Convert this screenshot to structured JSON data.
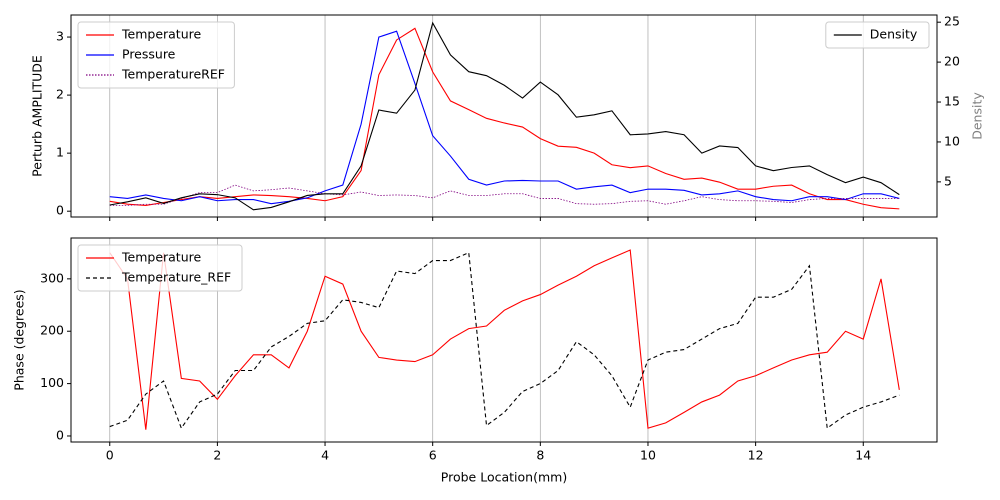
{
  "chart_data": [
    {
      "type": "line",
      "ylabel": "Perturb AMPLITUDE",
      "y2label": "Density",
      "y2label_color": "#808080",
      "x": [
        0,
        0.33,
        0.67,
        1,
        1.33,
        1.67,
        2,
        2.33,
        2.67,
        3,
        3.33,
        3.67,
        4,
        4.33,
        4.67,
        5,
        5.33,
        5.67,
        6,
        6.33,
        6.67,
        7,
        7.33,
        7.67,
        8,
        8.33,
        8.67,
        9,
        9.33,
        9.67,
        10,
        10.33,
        10.67,
        11,
        11.33,
        11.67,
        12,
        12.33,
        12.67,
        13,
        13.33,
        13.67,
        14,
        14.33,
        14.67
      ],
      "series": [
        {
          "name": "Temperature",
          "color": "#ff0000",
          "dash": "solid",
          "values": [
            0.17,
            0.12,
            0.1,
            0.15,
            0.2,
            0.25,
            0.22,
            0.25,
            0.28,
            0.27,
            0.25,
            0.22,
            0.18,
            0.25,
            0.7,
            2.35,
            2.95,
            3.15,
            2.4,
            1.9,
            1.75,
            1.6,
            1.52,
            1.45,
            1.25,
            1.12,
            1.1,
            1.0,
            0.8,
            0.75,
            0.78,
            0.65,
            0.55,
            0.57,
            0.5,
            0.38,
            0.38,
            0.43,
            0.45,
            0.3,
            0.2,
            0.2,
            0.12,
            0.06,
            0.04
          ]
        },
        {
          "name": "Pressure",
          "color": "#0000ff",
          "dash": "solid",
          "values": [
            0.25,
            0.22,
            0.28,
            0.22,
            0.18,
            0.25,
            0.18,
            0.2,
            0.2,
            0.13,
            0.17,
            0.23,
            0.35,
            0.45,
            1.5,
            3.0,
            3.1,
            2.2,
            1.3,
            0.95,
            0.55,
            0.45,
            0.52,
            0.53,
            0.52,
            0.52,
            0.38,
            0.42,
            0.45,
            0.32,
            0.38,
            0.38,
            0.36,
            0.28,
            0.3,
            0.35,
            0.25,
            0.2,
            0.18,
            0.25,
            0.25,
            0.2,
            0.3,
            0.3,
            0.22
          ]
        },
        {
          "name": "TemperatureREF",
          "color": "#800080",
          "dash": "dotted",
          "values": [
            0.1,
            0.1,
            0.12,
            0.12,
            0.22,
            0.32,
            0.32,
            0.45,
            0.35,
            0.37,
            0.4,
            0.35,
            0.3,
            0.28,
            0.33,
            0.27,
            0.28,
            0.27,
            0.23,
            0.35,
            0.27,
            0.27,
            0.3,
            0.3,
            0.22,
            0.22,
            0.13,
            0.12,
            0.13,
            0.17,
            0.18,
            0.12,
            0.18,
            0.25,
            0.2,
            0.18,
            0.18,
            0.17,
            0.15,
            0.2,
            0.22,
            0.22,
            0.22,
            0.22,
            0.22
          ]
        },
        {
          "name": "Density",
          "color": "#000000",
          "dash": "solid",
          "axis": "y2",
          "values": [
            2.1,
            2.5,
            3.0,
            2.3,
            3.0,
            3.5,
            3.4,
            3.0,
            1.5,
            1.8,
            2.5,
            3.3,
            3.5,
            3.5,
            7,
            14,
            13.6,
            16.5,
            24.9,
            20.9,
            18.8,
            18.3,
            17.1,
            15.5,
            17.5,
            15.9,
            13.1,
            13.4,
            13.9,
            10.9,
            11,
            11.3,
            10.9,
            8.6,
            9.5,
            9.3,
            7,
            6.4,
            6.8,
            7,
            5.9,
            4.9,
            5.6,
            4.9,
            3.4
          ]
        }
      ],
      "xlim": [
        -0.72,
        15.37
      ],
      "xticks": [
        0,
        2,
        4,
        6,
        8,
        10,
        12,
        14
      ],
      "xticklabels": false,
      "ylim": [
        -0.1,
        3.38
      ],
      "yticks": [
        0,
        1,
        2,
        3
      ],
      "y2lim": [
        0.6,
        25.9
      ],
      "y2ticks": [
        5,
        10,
        15,
        20,
        25
      ],
      "grid": "x",
      "legend": "upper left",
      "y2legend": "upper right"
    },
    {
      "type": "line",
      "ylabel": "Phase (degrees)",
      "xlabel": "Probe Location(mm)",
      "x": [
        0,
        0.33,
        0.67,
        1,
        1.33,
        1.67,
        2,
        2.33,
        2.67,
        3,
        3.33,
        3.67,
        4,
        4.33,
        4.67,
        5,
        5.33,
        5.67,
        6,
        6.33,
        6.67,
        7,
        7.33,
        7.67,
        8,
        8.33,
        8.67,
        9,
        9.33,
        9.67,
        10,
        10.33,
        10.67,
        11,
        11.33,
        11.67,
        12,
        12.33,
        12.67,
        13,
        13.33,
        13.67,
        14,
        14.33,
        14.67
      ],
      "series": [
        {
          "name": "Temperature",
          "color": "#ff0000",
          "dash": "solid",
          "values": [
            350,
            300,
            12,
            350,
            110,
            105,
            70,
            115,
            155,
            155,
            130,
            200,
            305,
            290,
            200,
            150,
            145,
            142,
            155,
            185,
            205,
            210,
            240,
            258,
            270,
            288,
            305,
            325,
            340,
            355,
            15,
            25,
            45,
            65,
            78,
            105,
            115,
            130,
            145,
            155,
            160,
            200,
            185,
            300,
            88
          ]
        },
        {
          "name": "Temperature_REF",
          "color": "#000000",
          "dash": "dashed",
          "values": [
            18,
            30,
            80,
            105,
            15,
            65,
            80,
            125,
            125,
            170,
            190,
            215,
            220,
            260,
            255,
            245,
            315,
            310,
            335,
            335,
            350,
            20,
            45,
            85,
            100,
            125,
            180,
            155,
            115,
            55,
            145,
            160,
            165,
            185,
            205,
            215,
            265,
            265,
            280,
            325,
            15,
            40,
            55,
            65,
            78
          ]
        }
      ],
      "xlim": [
        -0.72,
        15.37
      ],
      "xticks": [
        0,
        2,
        4,
        6,
        8,
        10,
        12,
        14
      ],
      "xticklabels": true,
      "ylim": [
        -11.5,
        378
      ],
      "yticks": [
        0,
        100,
        200,
        300
      ],
      "grid": "x",
      "legend": "upper left"
    }
  ]
}
